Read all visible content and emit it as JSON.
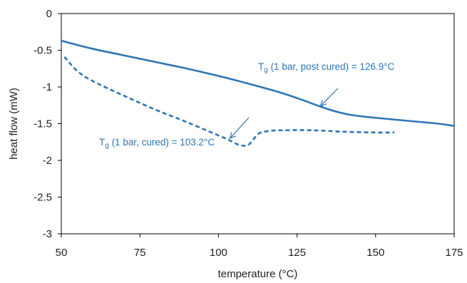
{
  "chart_data": {
    "type": "line",
    "title": "",
    "xlabel": "temperature (°C)",
    "ylabel": "heat flow (mW)",
    "xlim": [
      50,
      175
    ],
    "ylim": [
      -3,
      0
    ],
    "x_ticks": [
      50,
      75,
      100,
      125,
      150,
      175
    ],
    "y_ticks": [
      0,
      -0.5,
      -1,
      -1.5,
      -2,
      -2.5,
      -3
    ],
    "x_tick_labels": [
      "50",
      "75",
      "100",
      "125",
      "150",
      "175"
    ],
    "y_tick_labels": [
      "0",
      "-0.5",
      "-1",
      "-1.5",
      "-2",
      "-2.5",
      "-3"
    ],
    "grid": false,
    "legend": "none",
    "color": "#2E75B6",
    "series": [
      {
        "style": "solid",
        "x": [
          50,
          60,
          70,
          80,
          90,
          100,
          110,
          120,
          126.9,
          132,
          137,
          142,
          150,
          160,
          170,
          175
        ],
        "y": [
          -0.37,
          -0.48,
          -0.57,
          -0.66,
          -0.75,
          -0.85,
          -0.96,
          -1.08,
          -1.18,
          -1.26,
          -1.33,
          -1.38,
          -1.42,
          -1.46,
          -1.5,
          -1.53
        ]
      },
      {
        "style": "dashed",
        "x": [
          51,
          55,
          60,
          70,
          80,
          90,
          100,
          103.2,
          106,
          108,
          109.5,
          111,
          113,
          116,
          120,
          130,
          140,
          150,
          156
        ],
        "y": [
          -0.59,
          -0.78,
          -0.92,
          -1.12,
          -1.31,
          -1.48,
          -1.66,
          -1.72,
          -1.78,
          -1.8,
          -1.79,
          -1.72,
          -1.63,
          -1.6,
          -1.59,
          -1.59,
          -1.61,
          -1.62,
          -1.62
        ]
      }
    ],
    "annotations": [
      {
        "id": "post-cured",
        "main": "T",
        "sub": "g",
        "rest": " (1 bar, post cured) = 126.9°C",
        "arrow_target": [
          132,
          -1.28
        ]
      },
      {
        "id": "cured",
        "main": "T",
        "sub": "g",
        "rest": " (1 bar, cured) = 103.2°C",
        "arrow_target": [
          103.2,
          -1.72
        ]
      }
    ]
  }
}
